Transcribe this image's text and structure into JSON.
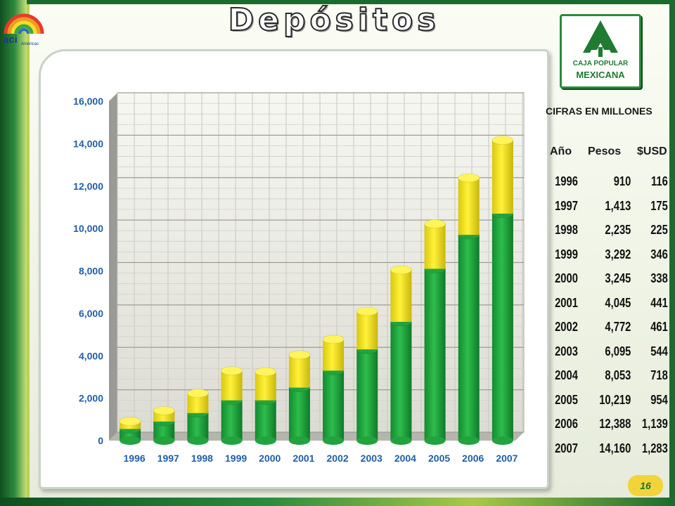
{
  "slide": {
    "title": "Depósitos",
    "page_number": "16",
    "logos": {
      "aci": {
        "text": "aci",
        "subtext": "Américas"
      },
      "caja_popular": {
        "line1": "CAJA POPULAR",
        "line2": "MEXICANA"
      }
    },
    "colors": {
      "frame_green": "#1c6b2e",
      "bar_green": "#22a33f",
      "bar_yellow": "#f2e11c",
      "axis_label_blue": "#1f5fa8"
    }
  },
  "table": {
    "heading": "CIFRAS EN MILLONES",
    "columns": [
      "Año",
      "Pesos",
      "$USD"
    ],
    "rows": [
      {
        "year": "1996",
        "pesos": "910",
        "usd": "116"
      },
      {
        "year": "1997",
        "pesos": "1,413",
        "usd": "175"
      },
      {
        "year": "1998",
        "pesos": "2,235",
        "usd": "225"
      },
      {
        "year": "1999",
        "pesos": "3,292",
        "usd": "346"
      },
      {
        "year": "2000",
        "pesos": "3,245",
        "usd": "338"
      },
      {
        "year": "2001",
        "pesos": "4,045",
        "usd": "441"
      },
      {
        "year": "2002",
        "pesos": "4,772",
        "usd": "461"
      },
      {
        "year": "2003",
        "pesos": "6,095",
        "usd": "544"
      },
      {
        "year": "2004",
        "pesos": "8,053",
        "usd": "718"
      },
      {
        "year": "2005",
        "pesos": "10,219",
        "usd": "954"
      },
      {
        "year": "2006",
        "pesos": "12,388",
        "usd": "1,139"
      },
      {
        "year": "2007",
        "pesos": "14,160",
        "usd": "1,283"
      }
    ]
  },
  "chart_data": {
    "type": "bar",
    "stacked": true,
    "categories": [
      "1996",
      "1997",
      "1998",
      "1999",
      "2000",
      "2001",
      "2002",
      "2003",
      "2004",
      "2005",
      "2006",
      "2007"
    ],
    "series": [
      {
        "color": "#22a33f",
        "values": [
          550,
          900,
          1300,
          1900,
          1900,
          2500,
          3300,
          4300,
          5600,
          8100,
          9700,
          10700
        ]
      },
      {
        "color": "#f2e11c",
        "values": [
          360,
          513,
          935,
          1392,
          1345,
          1545,
          1472,
          1795,
          2453,
          2119,
          2688,
          3460
        ]
      }
    ],
    "ylim": [
      0,
      16000
    ],
    "yticks": [
      "0",
      "2,000",
      "4,000",
      "6,000",
      "8,000",
      "10,000",
      "12,000",
      "14,000",
      "16,000"
    ],
    "ytick_values": [
      0,
      2000,
      4000,
      6000,
      8000,
      10000,
      12000,
      14000,
      16000
    ],
    "grid": true,
    "legend": "none"
  }
}
